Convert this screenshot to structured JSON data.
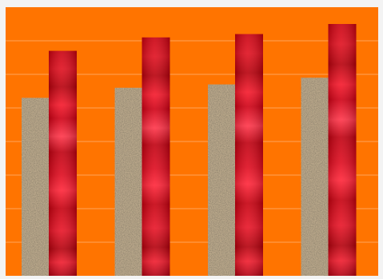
{
  "chart_data": {
    "type": "bar",
    "categories": [
      "",
      "",
      "",
      ""
    ],
    "series": [
      {
        "values": [
          5.3,
          5.6,
          5.7,
          5.9
        ]
      },
      {
        "values": [
          6.7,
          7.1,
          7.2,
          7.5
        ]
      }
    ],
    "ylim": [
      0,
      8
    ],
    "grid": true,
    "legend": "none",
    "title": "",
    "xlabel": "",
    "ylabel": ""
  },
  "colors": {
    "plot_background": "#ff7400",
    "page_border": "#f3f3f3",
    "gridline": "#ffa55a",
    "series_1_texture_base": "#b9a78a",
    "series_1_texture_dark": "#3c3424",
    "series_2_base": "#d40018",
    "series_2_highlight": "#ff2b3d",
    "series_2_shadow": "#a80010"
  },
  "textures": {
    "series_1": "sand-texture",
    "series_2": "glossy-red-texture"
  }
}
